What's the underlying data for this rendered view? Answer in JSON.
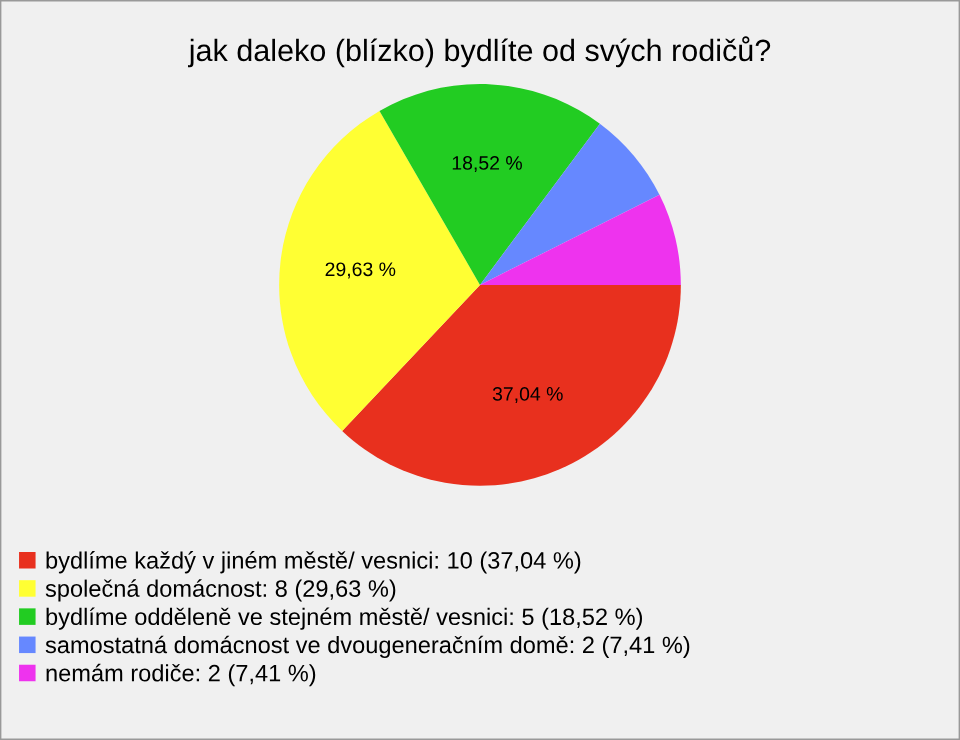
{
  "chart_data": {
    "type": "pie",
    "title": "jak daleko (blízko) bydlíte od svých rodičů?",
    "categories": [
      "bydlíme každý v jiném městě/ vesnici: 10 (37,04 %)",
      "společná domácnost: 8 (29,63 %)",
      "bydlíme odděleně ve stejném městě/ vesnici: 5 (18,52 %)",
      "samostatná domácnost ve dvougeneračním domě: 2 (7,41 %)",
      "nemám rodiče: 2 (7,41 %)"
    ],
    "values": [
      37.04,
      29.63,
      18.52,
      7.41,
      7.41
    ],
    "value_labels": [
      "37,04 %",
      "29,63 %",
      "18,52 %",
      null,
      null
    ],
    "colors": [
      "#e8301e",
      "#ffff33",
      "#22cc22",
      "#6688ff",
      "#ee33ee"
    ],
    "legend": "bottom"
  }
}
